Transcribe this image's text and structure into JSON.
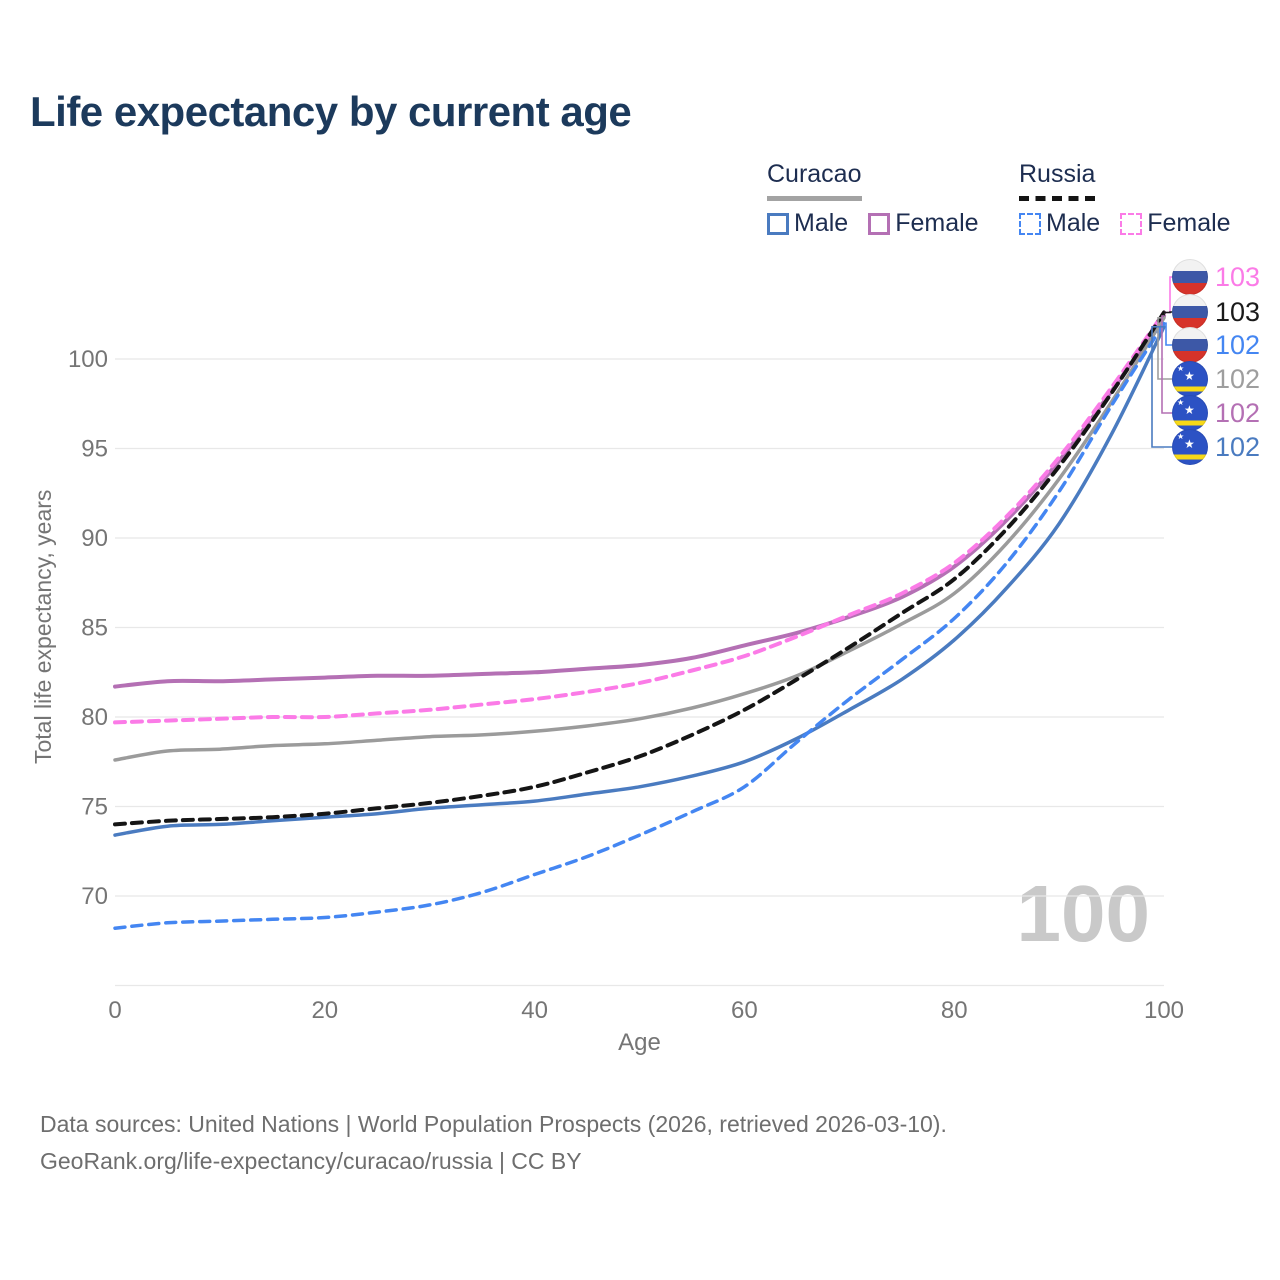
{
  "title": "Life expectancy by current age",
  "watermark": "100",
  "legend": {
    "groups": [
      {
        "name": "Curacao",
        "line_style": "solid",
        "items": [
          {
            "label": "Male",
            "color": "#4a7bc0"
          },
          {
            "label": "Female",
            "color": "#b470b4"
          }
        ]
      },
      {
        "name": "Russia",
        "line_style": "dashed",
        "items": [
          {
            "label": "Male",
            "color": "#4486f2"
          },
          {
            "label": "Female",
            "color": "#fb7be7"
          }
        ]
      }
    ]
  },
  "end_labels": [
    {
      "series": "russia_female",
      "value": "103",
      "color": "#fb7be7",
      "flag": "russia"
    },
    {
      "series": "russia_total",
      "value": "103",
      "color": "#1a1a1a",
      "flag": "russia"
    },
    {
      "series": "russia_male",
      "value": "102",
      "color": "#4486f2",
      "flag": "russia"
    },
    {
      "series": "curacao_total",
      "value": "102",
      "color": "#9e9e9e",
      "flag": "curacao"
    },
    {
      "series": "curacao_female",
      "value": "102",
      "color": "#b470b4",
      "flag": "curacao"
    },
    {
      "series": "curacao_male",
      "value": "102",
      "color": "#4a7bc0",
      "flag": "curacao"
    }
  ],
  "footer": {
    "line1": "Data sources: United Nations | World Population Prospects (2026, retrieved 2026-03-10).",
    "line2": "GeoRank.org/life-expectancy/curacao/russia | CC BY"
  },
  "chart_data": {
    "type": "line",
    "title": "Life expectancy by current age",
    "xlabel": "Age",
    "ylabel": "Total life expectancy, years",
    "xlim": [
      0,
      100
    ],
    "ylim": [
      64.5,
      103.5
    ],
    "x_ticks": [
      0,
      20,
      40,
      60,
      80,
      100
    ],
    "y_ticks": [
      70,
      75,
      80,
      85,
      90,
      95,
      100
    ],
    "extra_gridlines": [
      65
    ],
    "grid": "horizontal",
    "legend_position": "top-right",
    "x": [
      0,
      5,
      10,
      15,
      20,
      25,
      30,
      35,
      40,
      45,
      50,
      55,
      60,
      65,
      70,
      75,
      80,
      85,
      90,
      95,
      100
    ],
    "series": [
      {
        "key": "curacao_male",
        "name": "Curacao Male",
        "color": "#4a7bc0",
        "dashed": false,
        "width": 3.5,
        "values": [
          73.4,
          73.9,
          74.0,
          74.2,
          74.4,
          74.6,
          74.9,
          75.1,
          75.3,
          75.7,
          76.1,
          76.7,
          77.5,
          78.8,
          80.4,
          82.1,
          84.3,
          87.2,
          90.8,
          95.8,
          101.8
        ]
      },
      {
        "key": "curacao_female",
        "name": "Curacao Female",
        "color": "#b470b4",
        "dashed": false,
        "width": 4,
        "values": [
          81.7,
          82.0,
          82.0,
          82.1,
          82.2,
          82.3,
          82.3,
          82.4,
          82.5,
          82.7,
          82.9,
          83.3,
          84.0,
          84.7,
          85.6,
          86.7,
          88.4,
          91.0,
          94.3,
          98.2,
          102.4
        ]
      },
      {
        "key": "curacao_total",
        "name": "Curacao Both sexes",
        "color": "#9b9b9b",
        "dashed": false,
        "width": 3.5,
        "values": [
          77.6,
          78.1,
          78.2,
          78.4,
          78.5,
          78.7,
          78.9,
          79.0,
          79.2,
          79.5,
          79.9,
          80.5,
          81.3,
          82.3,
          83.7,
          85.2,
          86.9,
          89.7,
          93.3,
          97.6,
          102.3
        ]
      },
      {
        "key": "russia_male",
        "name": "Russia Male",
        "color": "#4486f2",
        "dashed": true,
        "width": 3.5,
        "values": [
          68.2,
          68.5,
          68.6,
          68.7,
          68.8,
          69.1,
          69.5,
          70.2,
          71.2,
          72.2,
          73.4,
          74.7,
          76.1,
          78.6,
          81.0,
          83.2,
          85.5,
          88.6,
          92.6,
          97.4,
          102.0
        ]
      },
      {
        "key": "russia_female",
        "name": "Russia Female",
        "color": "#fb7be7",
        "dashed": true,
        "width": 4,
        "values": [
          79.7,
          79.8,
          79.9,
          80.0,
          80.0,
          80.2,
          80.4,
          80.7,
          81.0,
          81.4,
          81.9,
          82.6,
          83.4,
          84.5,
          85.7,
          86.9,
          88.6,
          91.2,
          94.5,
          98.4,
          102.6
        ]
      },
      {
        "key": "russia_total",
        "name": "Russia Both sexes",
        "color": "#151515",
        "dashed": true,
        "width": 4,
        "values": [
          74.0,
          74.2,
          74.3,
          74.4,
          74.6,
          74.9,
          75.2,
          75.6,
          76.1,
          76.9,
          77.8,
          79.0,
          80.4,
          82.1,
          83.9,
          85.8,
          87.7,
          90.5,
          94.0,
          98.1,
          102.6
        ]
      }
    ]
  }
}
